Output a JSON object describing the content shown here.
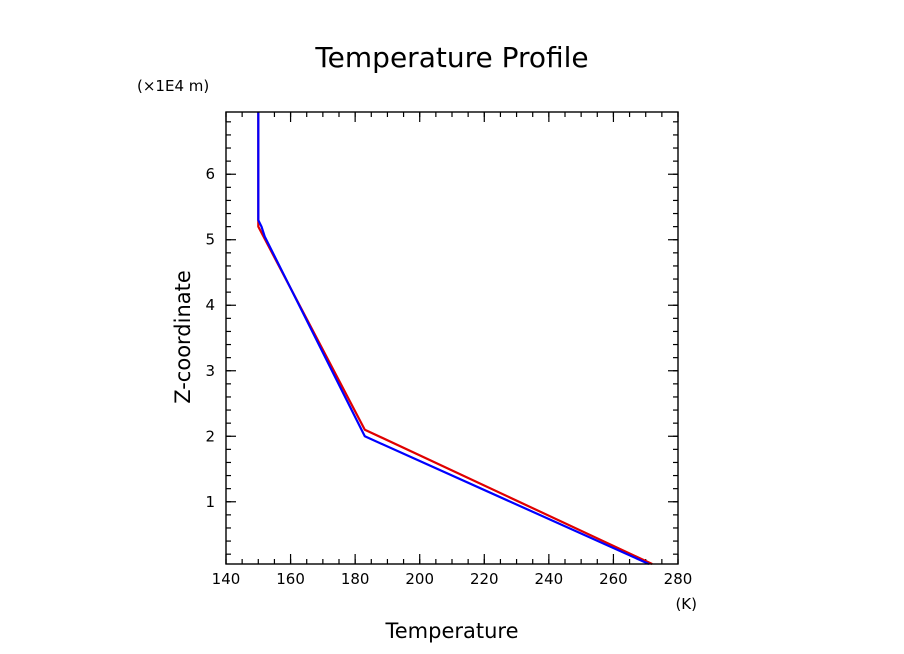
{
  "chart_data": {
    "type": "line",
    "title": "Temperature Profile",
    "xlabel": "Temperature",
    "ylabel": "Z-coordinate",
    "x_unit": "(K)",
    "y_unit": "(×1E4 m)",
    "xlim": [
      140,
      280
    ],
    "ylim": [
      0.05,
      6.95
    ],
    "x_ticks": [
      140,
      160,
      180,
      200,
      220,
      240,
      260,
      280
    ],
    "y_ticks": [
      1,
      2,
      3,
      4,
      5,
      6
    ],
    "x_minor_step": 5,
    "y_minor_step": 0.2,
    "grid": false,
    "series": [
      {
        "color": "#e00000",
        "x": [
          272,
          183,
          150,
          150,
          150
        ],
        "y": [
          0.05,
          2.1,
          5.2,
          5.25,
          6.95
        ]
      },
      {
        "color": "#0000ff",
        "x": [
          271,
          183,
          152,
          151,
          150,
          150
        ],
        "y": [
          0.05,
          2.0,
          5.05,
          5.2,
          5.3,
          6.95
        ]
      }
    ]
  }
}
